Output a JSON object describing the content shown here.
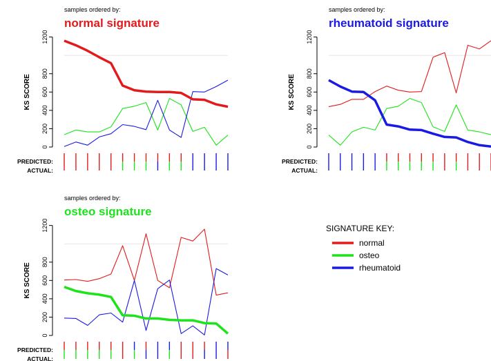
{
  "colors": {
    "normal": "#e31a1c",
    "osteo": "#1ce31a",
    "rheumatoid": "#1a1ae3",
    "axis": "#000000",
    "grid": "#e6e6e6"
  },
  "legend": {
    "title": "SIGNATURE KEY:",
    "entries": [
      {
        "label": "normal",
        "color": "#e31a1c"
      },
      {
        "label": "osteo",
        "color": "#1ce31a"
      },
      {
        "label": "rheumatoid",
        "color": "#1a1ae3"
      }
    ]
  },
  "chart_data": [
    {
      "type": "line",
      "caption": "samples ordered by:",
      "title": "normal signature",
      "title_color": "#e31a1c",
      "ylabel": "KS SCORE",
      "yticks": [
        0,
        200,
        400,
        600,
        800,
        1200
      ],
      "ylim": [
        0,
        1250
      ],
      "grid": "horizontal line at 1000",
      "predicted_label": "PREDICTED:",
      "actual_label": "ACTUAL:",
      "series": [
        {
          "color": "#e31a1c",
          "emphasis": true,
          "values": [
            1160,
            1110,
            1050,
            980,
            915,
            670,
            620,
            605,
            600,
            600,
            590,
            520,
            515,
            465,
            440
          ]
        },
        {
          "color": "#1ce31a",
          "values": [
            135,
            185,
            165,
            165,
            220,
            420,
            445,
            485,
            185,
            530,
            460,
            170,
            215,
            20,
            130
          ]
        },
        {
          "color": "#1a1ae3",
          "values": [
            5,
            55,
            20,
            110,
            145,
            245,
            225,
            190,
            510,
            185,
            105,
            605,
            600,
            660,
            730
          ]
        }
      ],
      "predicted": [
        "normal",
        "normal",
        "normal",
        "normal",
        "normal",
        "normal",
        "normal",
        "normal",
        "normal",
        "normal",
        "normal",
        "rheumatoid",
        "rheumatoid",
        "rheumatoid",
        "rheumatoid"
      ],
      "actual": [
        "normal",
        "normal",
        "normal",
        "normal",
        "normal",
        "osteo",
        "osteo",
        "osteo",
        "rheumatoid",
        "osteo",
        "osteo",
        "rheumatoid",
        "rheumatoid",
        "rheumatoid",
        "rheumatoid"
      ]
    },
    {
      "type": "line",
      "caption": "samples ordered by:",
      "title": "rheumatoid signature",
      "title_color": "#1a1ae3",
      "ylabel": "KS SCORE",
      "yticks": [
        0,
        200,
        400,
        600,
        800,
        1200
      ],
      "ylim": [
        0,
        1250
      ],
      "grid": "horizontal line at 1000",
      "predicted_label": "PREDICTED:",
      "actual_label": "ACTUAL:",
      "series": [
        {
          "color": "#e31a1c",
          "values": [
            440,
            465,
            520,
            520,
            605,
            665,
            620,
            600,
            605,
            980,
            1030,
            590,
            1110,
            1070,
            1160
          ]
        },
        {
          "color": "#1ce31a",
          "values": [
            130,
            20,
            165,
            215,
            185,
            420,
            445,
            530,
            485,
            220,
            170,
            460,
            185,
            165,
            135
          ]
        },
        {
          "color": "#1a1ae3",
          "emphasis": true,
          "values": [
            730,
            660,
            605,
            600,
            510,
            245,
            225,
            190,
            185,
            145,
            110,
            105,
            55,
            20,
            5
          ]
        }
      ],
      "predicted": [
        "rheumatoid",
        "rheumatoid",
        "rheumatoid",
        "rheumatoid",
        "rheumatoid",
        "normal",
        "normal",
        "normal",
        "normal",
        "normal",
        "normal",
        "normal",
        "normal",
        "normal",
        "normal"
      ],
      "actual": [
        "rheumatoid",
        "rheumatoid",
        "rheumatoid",
        "rheumatoid",
        "rheumatoid",
        "osteo",
        "osteo",
        "osteo",
        "osteo",
        "osteo",
        "normal",
        "osteo",
        "normal",
        "normal",
        "normal"
      ]
    },
    {
      "type": "line",
      "caption": "samples ordered by:",
      "title": "osteo signature",
      "title_color": "#1ce31a",
      "ylabel": "KS SCORE",
      "yticks": [
        0,
        200,
        400,
        600,
        800,
        1200
      ],
      "ylim": [
        0,
        1250
      ],
      "grid": "horizontal line at 1000",
      "predicted_label": "PREDICTED:",
      "actual_label": "ACTUAL:",
      "series": [
        {
          "color": "#e31a1c",
          "values": [
            605,
            610,
            590,
            620,
            670,
            980,
            600,
            1110,
            600,
            520,
            1070,
            1030,
            1160,
            440,
            465
          ]
        },
        {
          "color": "#1ce31a",
          "emphasis": true,
          "values": [
            530,
            485,
            460,
            445,
            420,
            220,
            215,
            185,
            185,
            170,
            165,
            165,
            135,
            130,
            20
          ]
        },
        {
          "color": "#1a1ae3",
          "values": [
            190,
            185,
            110,
            225,
            245,
            145,
            600,
            55,
            510,
            605,
            20,
            105,
            5,
            730,
            660
          ]
        }
      ],
      "predicted": [
        "normal",
        "normal",
        "normal",
        "normal",
        "normal",
        "normal",
        "rheumatoid",
        "normal",
        "rheumatoid",
        "rheumatoid",
        "normal",
        "normal",
        "normal",
        "rheumatoid",
        "rheumatoid"
      ],
      "actual": [
        "osteo",
        "osteo",
        "osteo",
        "osteo",
        "osteo",
        "normal",
        "osteo",
        "rheumatoid",
        "rheumatoid",
        "osteo",
        "normal",
        "normal",
        "rheumatoid",
        "rheumatoid",
        "normal"
      ]
    }
  ]
}
